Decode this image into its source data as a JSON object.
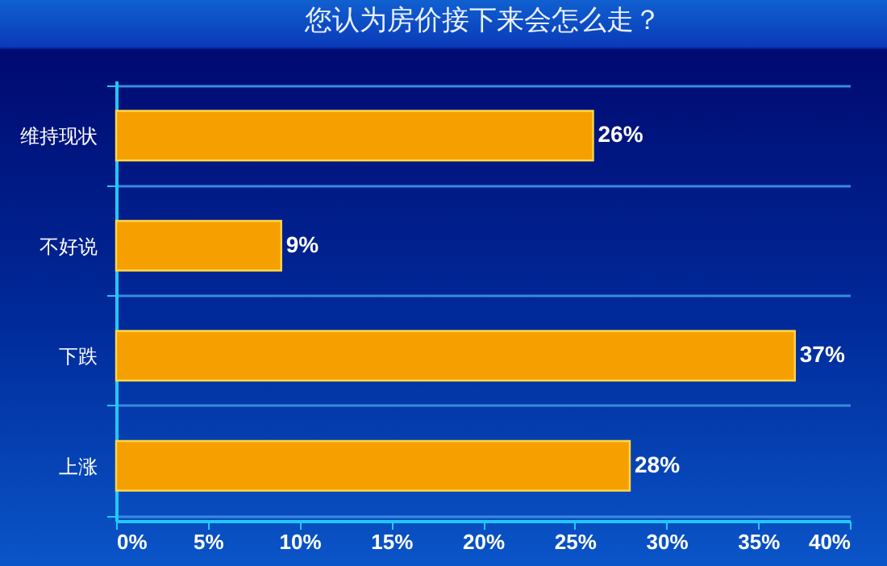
{
  "chart_data": {
    "type": "bar",
    "orientation": "horizontal",
    "title": "您认为房价接下来会怎么走？",
    "categories": [
      "维持现状",
      "不好说",
      "下跌",
      "上涨"
    ],
    "values": [
      26,
      9,
      37,
      28
    ],
    "value_labels": [
      "26%",
      "9%",
      "37%",
      "28%"
    ],
    "color": "#f5a000",
    "xlim": [
      0,
      40
    ],
    "xticks": [
      {
        "value": 0,
        "label": "0%"
      },
      {
        "value": 5,
        "label": "5%"
      },
      {
        "value": 10,
        "label": "10%"
      },
      {
        "value": 15,
        "label": "15%"
      },
      {
        "value": 20,
        "label": "20%"
      },
      {
        "value": 25,
        "label": "25%"
      },
      {
        "value": 30,
        "label": "30%"
      },
      {
        "value": 35,
        "label": "35%"
      },
      {
        "value": 40,
        "label": "40%"
      }
    ],
    "grid": "y"
  }
}
